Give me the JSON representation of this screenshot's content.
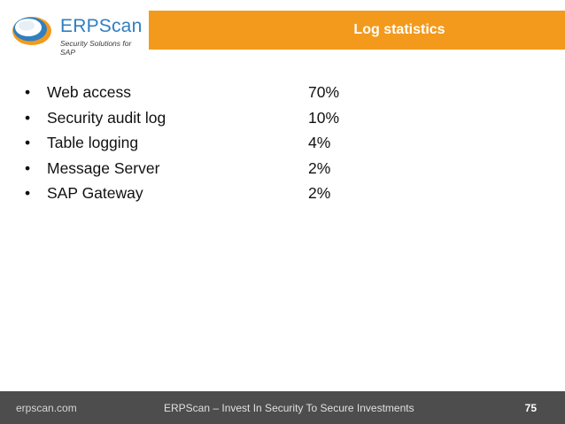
{
  "header": {
    "logo_name": "ERPScan",
    "logo_tagline": "Security Solutions for SAP",
    "title": "Log statistics"
  },
  "items": [
    {
      "label": "Web access",
      "value": "70%"
    },
    {
      "label": "Security audit log",
      "value": "10%"
    },
    {
      "label": "Table logging",
      "value": "4%"
    },
    {
      "label": "Message Server",
      "value": "2%"
    },
    {
      "label": "SAP Gateway",
      "value": "2%"
    }
  ],
  "footer": {
    "site": "erpscan.com",
    "slogan": "ERPScan – Invest In Security To Secure Investments",
    "page_number": "75"
  },
  "colors": {
    "title_bar": "#f39a1c",
    "brand_blue": "#2f7fc1",
    "footer_bg": "#4d4d4d"
  }
}
